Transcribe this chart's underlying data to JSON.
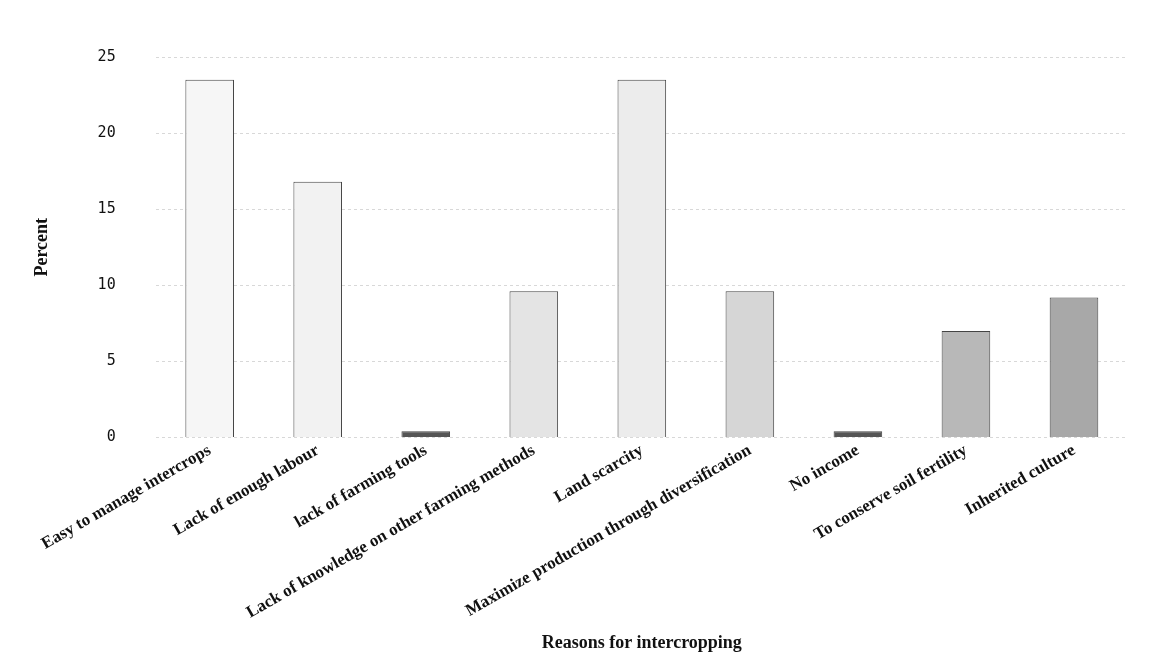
{
  "chart_data": {
    "type": "bar",
    "xlabel": "Reasons for intercropping",
    "ylabel": "Percent",
    "categories": [
      "Easy to manage intercrops",
      "Lack of enough labour",
      "lack of farming tools",
      "Lack of knowledge on other farming methods",
      "Land scarcity",
      "Maximize production through diversification",
      "No income",
      "To conserve soil fertility",
      "Inherited culture"
    ],
    "values": [
      23.5,
      16.8,
      0.4,
      9.6,
      23.5,
      9.6,
      0.4,
      7.0,
      9.2
    ],
    "colors": [
      "#f6f6f6",
      "#f2f2f2",
      "#555555",
      "#e4e4e4",
      "#ececec",
      "#d6d6d6",
      "#555555",
      "#b8b8b8",
      "#a8a8a8"
    ],
    "ylim": [
      0,
      25
    ],
    "yticks": [
      0,
      5,
      10,
      15,
      20,
      25
    ],
    "grid": "y",
    "legend": false
  }
}
